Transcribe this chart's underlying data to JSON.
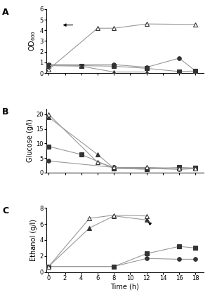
{
  "panel_A": {
    "title": "A",
    "ylabel": "OD$_{600}$",
    "ylim": [
      0,
      6
    ],
    "yticks": [
      0,
      1,
      2,
      3,
      4,
      5,
      6
    ],
    "xlim": [
      -0.3,
      19
    ],
    "series": {
      "circle_filled": {
        "x": [
          0,
          8,
          12,
          16,
          18
        ],
        "y": [
          0.8,
          0.8,
          0.55,
          1.4,
          0.2
        ]
      },
      "square_filled": {
        "x": [
          0,
          4,
          8,
          12,
          16,
          18
        ],
        "y": [
          0.75,
          0.7,
          0.65,
          0.45,
          0.15,
          0.2
        ]
      },
      "triangle_filled": {
        "x": [
          0,
          4,
          8,
          12
        ],
        "y": [
          0.7,
          0.65,
          0.1,
          0.1
        ]
      },
      "triangle_open": {
        "x": [
          0,
          6,
          8,
          12,
          18
        ],
        "y": [
          0.35,
          4.2,
          4.2,
          4.6,
          4.55
        ]
      }
    },
    "arrow": {
      "xtail": 3.2,
      "ytail": 4.5,
      "xhead": 1.5,
      "yhead": 4.5
    }
  },
  "panel_B": {
    "title": "B",
    "ylabel": "Glucose (g/l)",
    "ylim": [
      0,
      22
    ],
    "yticks": [
      0,
      5,
      10,
      15,
      20
    ],
    "xlim": [
      -0.3,
      19
    ],
    "series": {
      "circle_filled": {
        "x": [
          0,
          8,
          12,
          16,
          18
        ],
        "y": [
          4.0,
          1.8,
          1.5,
          1.1,
          1.4
        ]
      },
      "square_filled": {
        "x": [
          0,
          4,
          8,
          12,
          16,
          18
        ],
        "y": [
          9.0,
          6.2,
          1.5,
          1.2,
          1.8,
          1.6
        ]
      },
      "triangle_filled": {
        "x": [
          0,
          6,
          8,
          12
        ],
        "y": [
          19.0,
          6.2,
          1.5,
          1.2
        ]
      },
      "triangle_open": {
        "x": [
          0,
          6,
          8,
          12,
          16,
          18
        ],
        "y": [
          20.0,
          3.5,
          1.8,
          1.8,
          1.5,
          1.5
        ]
      }
    }
  },
  "panel_C": {
    "title": "C",
    "ylabel": "Ethanol (g/l)",
    "xlabel": "Time (h)",
    "ylim": [
      0,
      8
    ],
    "yticks": [
      0,
      2,
      4,
      6,
      8
    ],
    "xlim": [
      -0.3,
      19
    ],
    "xticks": [
      0,
      2,
      4,
      6,
      8,
      10,
      12,
      14,
      16,
      18
    ],
    "series": {
      "circle_filled": {
        "x": [
          0,
          8,
          12,
          16,
          18
        ],
        "y": [
          0.7,
          0.7,
          1.7,
          1.6,
          1.6
        ]
      },
      "square_filled": {
        "x": [
          0,
          8,
          12,
          16,
          18
        ],
        "y": [
          0.7,
          0.7,
          2.3,
          3.2,
          3.0
        ]
      },
      "triangle_filled": {
        "x": [
          0,
          5,
          8,
          12
        ],
        "y": [
          0.7,
          5.5,
          7.0,
          6.5
        ]
      },
      "triangle_open": {
        "x": [
          0,
          5,
          8,
          12
        ],
        "y": [
          0.7,
          6.7,
          7.1,
          7.0
        ]
      }
    },
    "arrow": {
      "xtail": 12.7,
      "ytail": 5.8,
      "xhead": 12.0,
      "yhead": 6.4
    }
  },
  "line_color": "#999999",
  "marker_color": "#333333",
  "markersize": 4,
  "linewidth": 0.8,
  "figure_bg": "white"
}
